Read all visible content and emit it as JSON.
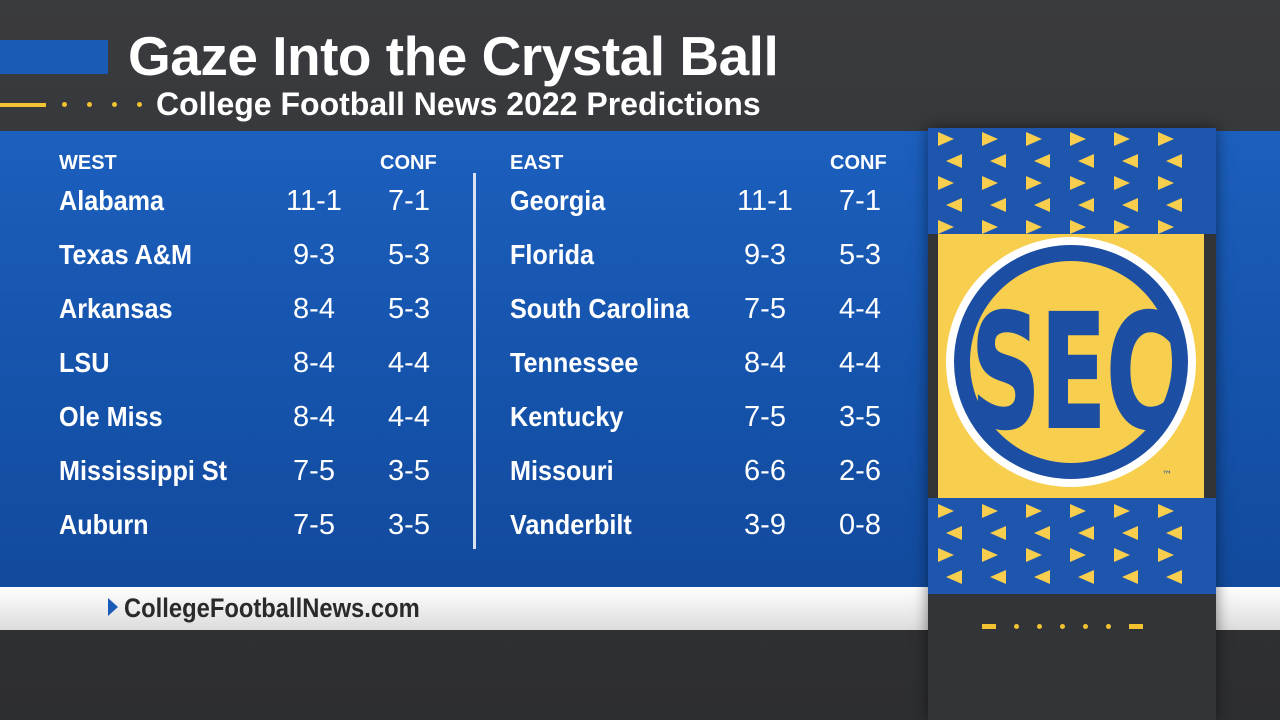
{
  "header": {
    "title": "Gaze Into the Crystal Ball",
    "subtitle": "College Football News 2022 Predictions"
  },
  "west": {
    "label": "WEST",
    "conf_label": "CONF",
    "teams": [
      {
        "name": "Alabama",
        "overall": "11-1",
        "conf": "7-1"
      },
      {
        "name": "Texas A&M",
        "overall": "9-3",
        "conf": "5-3"
      },
      {
        "name": "Arkansas",
        "overall": "8-4",
        "conf": "5-3"
      },
      {
        "name": "LSU",
        "overall": "8-4",
        "conf": "4-4"
      },
      {
        "name": "Ole Miss",
        "overall": "8-4",
        "conf": "4-4"
      },
      {
        "name": "Mississippi St",
        "overall": "7-5",
        "conf": "3-5"
      },
      {
        "name": "Auburn",
        "overall": "7-5",
        "conf": "3-5"
      }
    ]
  },
  "east": {
    "label": "EAST",
    "conf_label": "CONF",
    "teams": [
      {
        "name": "Georgia",
        "overall": "11-1",
        "conf": "7-1"
      },
      {
        "name": "Florida",
        "overall": "9-3",
        "conf": "5-3"
      },
      {
        "name": "South Carolina",
        "overall": "7-5",
        "conf": "4-4"
      },
      {
        "name": "Tennessee",
        "overall": "8-4",
        "conf": "4-4"
      },
      {
        "name": "Kentucky",
        "overall": "7-5",
        "conf": "3-5"
      },
      {
        "name": "Missouri",
        "overall": "6-6",
        "conf": "2-6"
      },
      {
        "name": "Vanderbilt",
        "overall": "3-9",
        "conf": "0-8"
      }
    ]
  },
  "footer": {
    "site": "CollegeFootballNews.com"
  },
  "logo": {
    "letters": "SEC",
    "trademark": "™",
    "icon": "sec-logo-icon"
  },
  "colors": {
    "blue": "#1a5bb8",
    "gold": "#f7ce4d",
    "dark": "#2f3033"
  }
}
